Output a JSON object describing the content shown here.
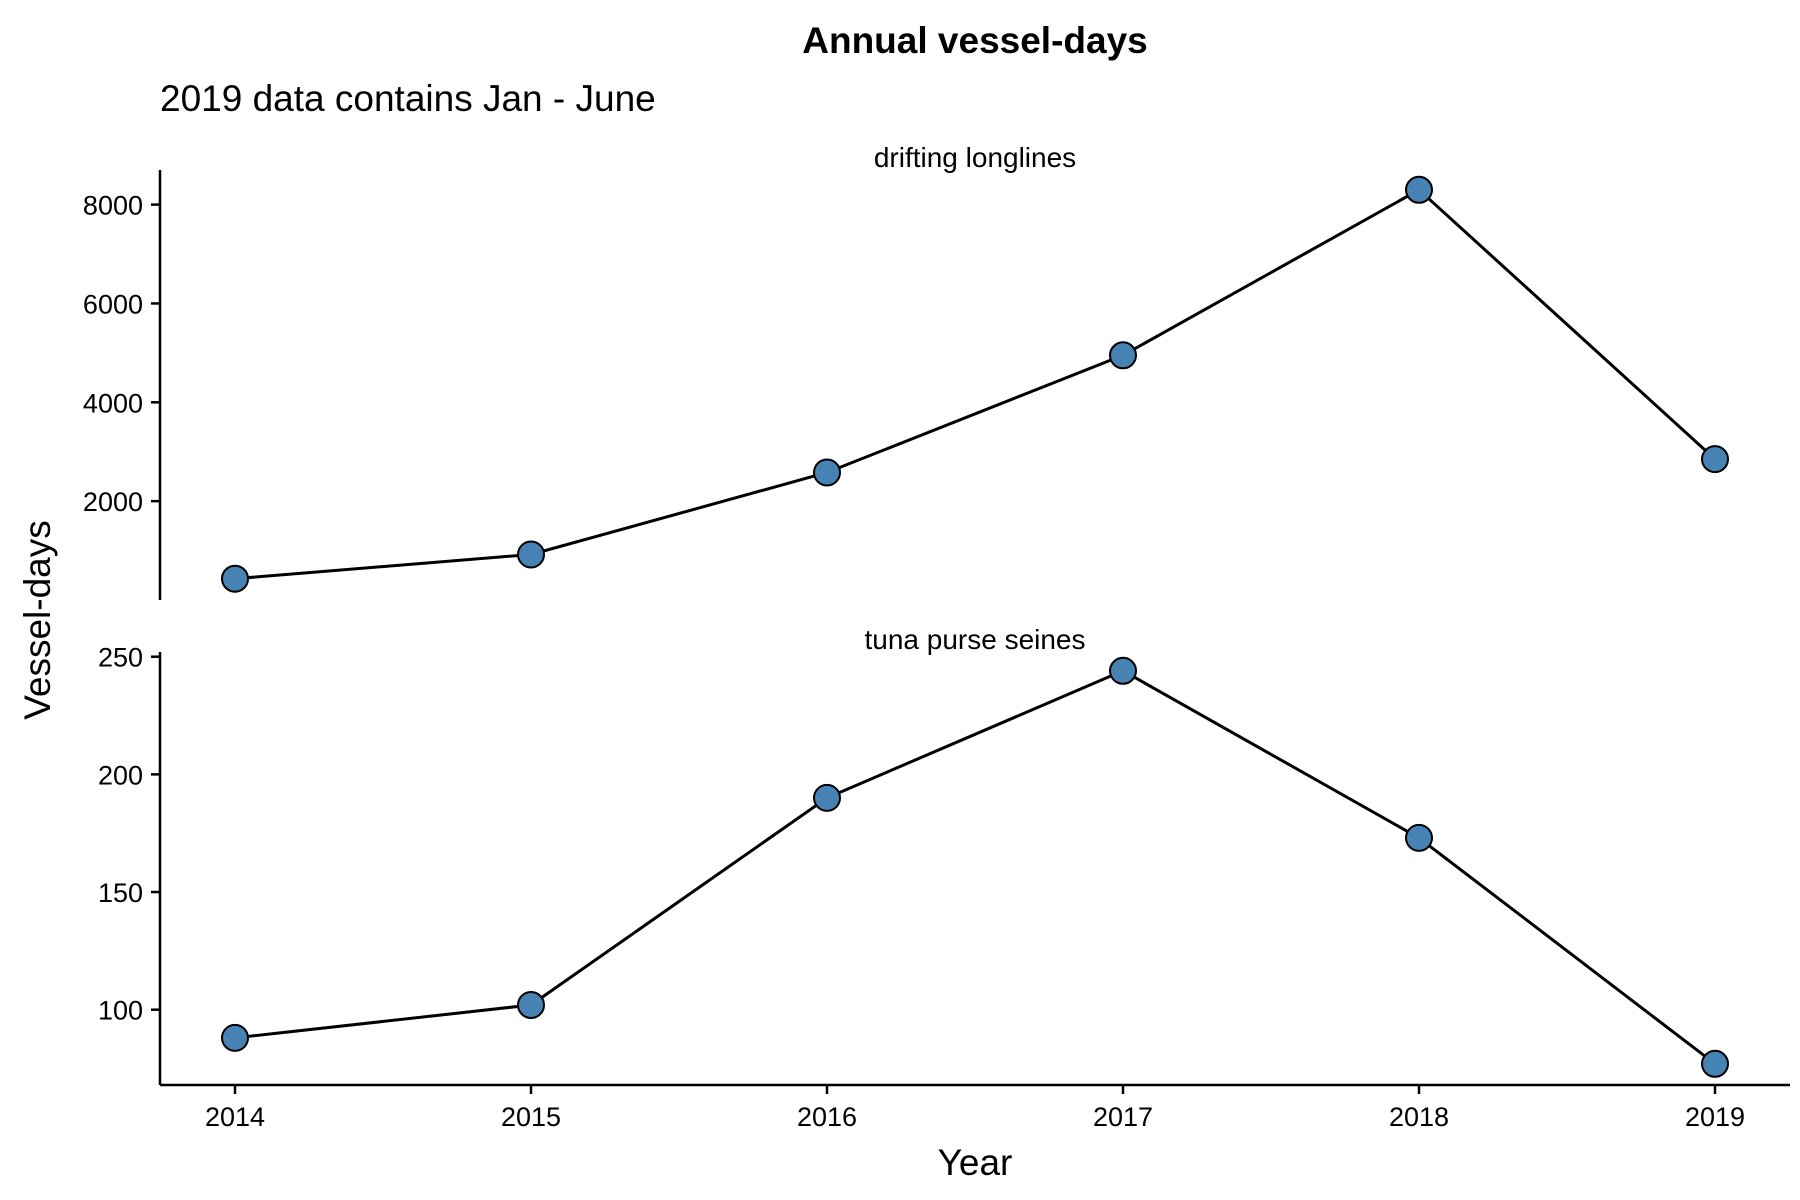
{
  "chart_data": {
    "type": "line",
    "title": "Annual vessel-days",
    "subtitle": "2019 data contains Jan - June",
    "xlabel": "Year",
    "ylabel": "Vessel-days",
    "x": [
      2014,
      2015,
      2016,
      2017,
      2018,
      2019
    ],
    "x_tick_labels": [
      "2014",
      "2015",
      "2016",
      "2017",
      "2018",
      "2019"
    ],
    "grid": false,
    "point_color": "#4682B4",
    "line_color": "#000000",
    "panels": [
      {
        "strip_label": "drifting  longlines",
        "values": [
          430,
          920,
          2580,
          4950,
          8300,
          2850
        ],
        "ylim": [
          0,
          8700
        ],
        "y_ticks": [
          2000,
          4000,
          6000,
          8000
        ],
        "y_tick_labels": [
          "2000",
          "4000",
          "6000",
          "8000"
        ]
      },
      {
        "strip_label": "tuna  purse  seines",
        "values": [
          88,
          102,
          190,
          244,
          173,
          77
        ],
        "ylim": [
          68,
          252
        ],
        "y_ticks": [
          100,
          150,
          200,
          250
        ],
        "y_tick_labels": [
          "100",
          "150",
          "200",
          "250"
        ]
      }
    ]
  }
}
